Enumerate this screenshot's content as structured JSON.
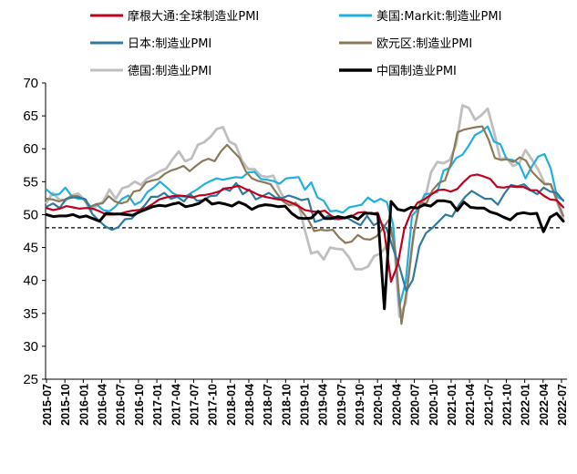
{
  "chart_data": {
    "type": "line",
    "title": "",
    "xlabel": "",
    "ylabel": "",
    "ylim": [
      25,
      70
    ],
    "y_ticks": [
      "25",
      "30",
      "35",
      "40",
      "45",
      "50",
      "55",
      "60",
      "65",
      "70"
    ],
    "x_ticks": [
      "2015-07",
      "2015-10",
      "2016-01",
      "2016-04",
      "2016-07",
      "2016-10",
      "2017-01",
      "2017-04",
      "2017-07",
      "2017-10",
      "2018-01",
      "2018-04",
      "2018-07",
      "2018-10",
      "2019-01",
      "2019-04",
      "2019-07",
      "2019-10",
      "2020-01",
      "2020-04",
      "2020-07",
      "2020-10",
      "2021-01",
      "2021-04",
      "2021-07",
      "2021-10",
      "2022-01",
      "2022-04",
      "2022-07"
    ],
    "reference_line": 48,
    "legend_position": "top",
    "series": [
      {
        "name": "摩根大通:全球制造业PMI",
        "color": "#c0001f",
        "width": 2.2,
        "values": [
          51.0,
          50.7,
          50.9,
          51.3,
          51.1,
          50.9,
          51.0,
          50.9,
          50.5,
          50.0,
          50.0,
          50.1,
          50.4,
          50.6,
          50.7,
          51.0,
          51.6,
          52.3,
          52.6,
          52.8,
          52.9,
          52.8,
          52.6,
          52.9,
          53.0,
          53.2,
          53.5,
          54.0,
          54.1,
          54.4,
          53.9,
          53.5,
          53.0,
          52.7,
          52.5,
          52.3,
          52.2,
          51.8,
          51.3,
          50.7,
          50.5,
          50.4,
          50.6,
          49.8,
          49.3,
          49.5,
          49.7,
          50.3,
          50.4,
          50.1,
          50.3,
          47.3,
          39.8,
          42.4,
          47.8,
          50.3,
          51.8,
          52.3,
          53.0,
          53.7,
          53.8,
          53.5,
          53.9,
          55.0,
          55.9,
          56.1,
          55.8,
          55.4,
          54.2,
          54.1,
          54.3,
          54.2,
          54.2,
          53.7,
          53.7,
          52.9,
          52.3,
          52.2,
          51.1
        ]
      },
      {
        "name": "美国:Markit:制造业PMI",
        "color": "#1fb0e0",
        "width": 2.2,
        "values": [
          53.8,
          53.0,
          53.1,
          54.1,
          52.8,
          52.4,
          52.4,
          51.2,
          51.5,
          50.7,
          50.5,
          51.3,
          52.4,
          52.9,
          51.5,
          52.0,
          53.4,
          54.1,
          55.0,
          54.2,
          53.3,
          52.8,
          52.7,
          53.3,
          53.9,
          54.6,
          55.1,
          55.5,
          55.3,
          55.5,
          55.7,
          55.6,
          56.4,
          56.5,
          55.4,
          55.3,
          55.1,
          54.7,
          55.5,
          55.6,
          55.7,
          53.8,
          54.9,
          52.6,
          52.1,
          50.5,
          50.6,
          50.3,
          51.1,
          51.3,
          51.5,
          52.6,
          51.9,
          52.4,
          51.9,
          48.5,
          36.1,
          39.8,
          49.8,
          50.9,
          53.1,
          53.2,
          53.4,
          56.7,
          57.1,
          58.6,
          59.1,
          60.5,
          62.1,
          62.6,
          63.4,
          61.1,
          60.7,
          58.4,
          58.3,
          57.7,
          55.5,
          57.3,
          58.8,
          59.2,
          57.0,
          52.7,
          52.2
        ]
      },
      {
        "name": "日本:制造业PMI",
        "color": "#2f7a9e",
        "width": 2.2,
        "values": [
          51.2,
          51.7,
          51.0,
          52.4,
          52.6,
          52.6,
          52.3,
          50.1,
          49.1,
          48.2,
          47.7,
          48.1,
          49.3,
          49.4,
          50.4,
          51.4,
          52.7,
          52.7,
          53.3,
          52.4,
          52.7,
          52.0,
          53.1,
          52.1,
          52.2,
          52.8,
          52.9,
          54.0,
          53.6,
          54.8,
          53.1,
          53.8,
          52.3,
          52.8,
          53.3,
          52.6,
          52.5,
          52.9,
          52.6,
          52.2,
          52.4,
          48.9,
          49.2,
          49.8,
          49.3,
          49.4,
          49.5,
          48.9,
          48.4,
          49.8,
          48.4,
          48.9,
          47.8,
          44.8,
          41.9,
          38.4,
          40.1,
          45.2,
          47.2,
          48.0,
          49.0,
          50.0,
          49.7,
          51.4,
          52.7,
          53.6,
          53.0,
          52.4,
          52.4,
          51.5,
          53.2,
          54.5,
          54.3,
          54.6,
          53.7,
          53.1,
          54.1,
          53.5,
          53.3,
          52.1
        ]
      },
      {
        "name": "欧元区:制造业PMI",
        "color": "#8b7a59",
        "width": 2.2,
        "values": [
          52.4,
          52.3,
          52.0,
          52.3,
          52.8,
          52.8,
          52.3,
          51.2,
          51.6,
          51.7,
          52.8,
          52.0,
          51.7,
          52.0,
          53.5,
          53.7,
          54.9,
          55.2,
          55.4,
          56.2,
          56.7,
          57.0,
          57.4,
          56.6,
          57.4,
          58.1,
          58.5,
          58.1,
          59.6,
          60.6,
          59.6,
          58.6,
          56.6,
          55.5,
          55.1,
          54.9,
          54.6,
          53.2,
          52.0,
          51.4,
          51.8,
          50.5,
          49.3,
          47.5,
          47.7,
          47.6,
          47.7,
          46.5,
          45.7,
          45.9,
          46.9,
          46.3,
          46.2,
          46.7,
          47.9,
          49.2,
          44.5,
          33.4,
          39.4,
          47.4,
          51.8,
          51.7,
          53.7,
          54.8,
          55.2,
          57.9,
          62.5,
          62.9,
          63.1,
          63.3,
          63.4,
          61.4,
          58.6,
          58.3,
          58.4,
          58.0,
          58.7,
          58.2,
          56.5,
          55.5,
          54.6,
          54.6,
          52.1,
          49.8
        ]
      },
      {
        "name": "德国:制造业PMI",
        "color": "#bfbfbf",
        "width": 2.8,
        "values": [
          51.8,
          53.3,
          52.3,
          52.1,
          52.9,
          53.2,
          52.3,
          50.5,
          51.4,
          52.0,
          53.8,
          52.4,
          54.0,
          54.3,
          55.0,
          54.5,
          55.5,
          56.0,
          56.6,
          57.0,
          58.4,
          59.6,
          58.1,
          58.5,
          60.6,
          61.0,
          61.8,
          63.0,
          63.3,
          61.1,
          60.6,
          58.2,
          56.9,
          56.9,
          55.9,
          55.7,
          55.9,
          53.7,
          51.8,
          51.4,
          51.5,
          47.6,
          44.1,
          44.4,
          43.2,
          45.0,
          44.8,
          44.7,
          43.5,
          41.7,
          41.7,
          42.1,
          43.7,
          44.1,
          45.3,
          48.0,
          34.5,
          36.6,
          45.2,
          51.0,
          52.2,
          56.4,
          58.0,
          57.8,
          58.3,
          60.7,
          66.6,
          66.2,
          64.4,
          65.1,
          66.1,
          62.6,
          58.4,
          58.6,
          57.4,
          57.8,
          59.8,
          58.4,
          56.9,
          54.8,
          54.6,
          52.0,
          49.3
        ]
      },
      {
        "name": "中国制造业PMI",
        "color": "#000000",
        "width": 3.0,
        "values": [
          50.0,
          49.7,
          49.8,
          49.8,
          50.0,
          49.6,
          49.8,
          49.4,
          49.0,
          50.2,
          50.1,
          50.1,
          50.0,
          49.9,
          50.4,
          50.8,
          51.2,
          51.4,
          51.3,
          51.6,
          51.8,
          51.2,
          51.4,
          51.7,
          52.4,
          51.6,
          51.8,
          51.6,
          51.3,
          51.9,
          51.5,
          50.8,
          51.3,
          51.5,
          51.4,
          51.2,
          51.3,
          50.2,
          49.5,
          49.4,
          49.5,
          50.5,
          49.4,
          49.4,
          49.7,
          49.5,
          49.8,
          49.3,
          50.2,
          50.2,
          50.0,
          35.7,
          52.0,
          50.8,
          50.6,
          51.1,
          51.0,
          51.5,
          51.3,
          52.1,
          52.1,
          51.9,
          50.6,
          51.9,
          51.1,
          51.0,
          51.0,
          50.4,
          50.1,
          49.6,
          49.2,
          50.1,
          50.3,
          50.1,
          50.2,
          47.4,
          49.6,
          50.2,
          49.0
        ]
      }
    ]
  }
}
